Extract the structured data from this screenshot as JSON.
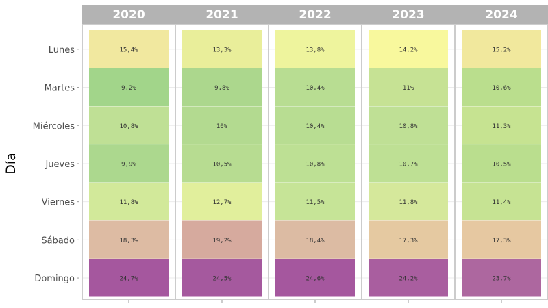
{
  "chart_data": {
    "type": "heatmap",
    "ylabel": "Día",
    "facets": [
      "2020",
      "2021",
      "2022",
      "2023",
      "2024"
    ],
    "rows": [
      "Lunes",
      "Martes",
      "Miércoles",
      "Jueves",
      "Viernes",
      "Sábado",
      "Domingo"
    ],
    "values": [
      [
        15.4,
        9.2,
        10.8,
        9.9,
        11.8,
        18.3,
        24.7
      ],
      [
        13.3,
        9.8,
        10.0,
        10.5,
        12.7,
        19.2,
        24.5
      ],
      [
        13.8,
        10.4,
        10.4,
        10.8,
        11.5,
        18.4,
        24.6
      ],
      [
        14.2,
        11.0,
        10.8,
        10.7,
        11.8,
        17.3,
        24.2
      ],
      [
        15.2,
        10.6,
        11.3,
        10.5,
        11.4,
        17.3,
        23.7
      ]
    ],
    "labels": [
      [
        "15,4%",
        "9,2%",
        "10,8%",
        "9,9%",
        "11,8%",
        "18,3%",
        "24,7%"
      ],
      [
        "13,3%",
        "9,8%",
        "10%",
        "10,5%",
        "12,7%",
        "19,2%",
        "24,5%"
      ],
      [
        "13,8%",
        "10,4%",
        "10,4%",
        "10,8%",
        "11,5%",
        "18,4%",
        "24,6%"
      ],
      [
        "14,2%",
        "11%",
        "10,8%",
        "10,7%",
        "11,8%",
        "17,3%",
        "24,2%"
      ],
      [
        "15,2%",
        "10,6%",
        "11,3%",
        "10,5%",
        "11,4%",
        "17,3%",
        "23,7%"
      ]
    ],
    "colors": [
      [
        "#f1e89f",
        "#a2d58a",
        "#bfe095",
        "#acd88e",
        "#d2e99a",
        "#ddbba3",
        "#a5579e"
      ],
      [
        "#e9ee9a",
        "#acd78d",
        "#b3da90",
        "#b7dc91",
        "#e1ef9c",
        "#d6aa9e",
        "#a5599e"
      ],
      [
        "#eef49d",
        "#b8dd92",
        "#b8dd92",
        "#bde094",
        "#c6e497",
        "#dcbba3",
        "#a5579e"
      ],
      [
        "#f8f89d",
        "#c6e294",
        "#bfe095",
        "#bee094",
        "#d5e89b",
        "#e5c9a1",
        "#a95e9f"
      ],
      [
        "#f1e89d",
        "#bade8d",
        "#c6e391",
        "#bade8e",
        "#c6e393",
        "#e6c8a1",
        "#ad679f"
      ]
    ],
    "legend": "none",
    "grid": true
  }
}
